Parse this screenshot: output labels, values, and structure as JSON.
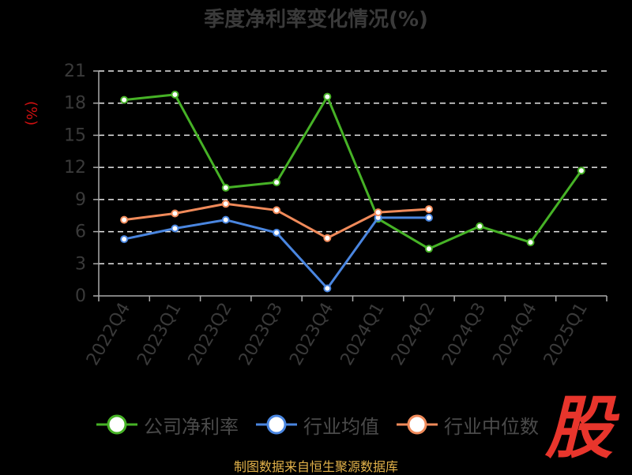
{
  "title": "季度净利率变化情况(%)",
  "unit_label": "(%)",
  "source": "制图数据来自恒生聚源数据库",
  "logo_text": "股",
  "colors": {
    "background": "#000000",
    "grid": "#e8e8e8",
    "axis": "#aaaaaa",
    "tick_text": "#3a3a3a",
    "company": "#46b226",
    "industry_avg": "#4a86e0",
    "industry_median": "#f08a5a"
  },
  "chart_data": {
    "type": "line",
    "title": "季度净利率变化情况(%)",
    "ylabel": "(%)",
    "categories": [
      "2022Q4",
      "2023Q1",
      "2023Q2",
      "2023Q3",
      "2023Q4",
      "2024Q1",
      "2024Q2",
      "2024Q3",
      "2024Q4",
      "2025Q1"
    ],
    "ylim": [
      0,
      21
    ],
    "yticks": [
      0,
      3,
      6,
      9,
      12,
      15,
      18,
      21
    ],
    "grid": true,
    "legend": "bottom",
    "series": [
      {
        "name": "公司净利率",
        "color_key": "company",
        "values": [
          18.3,
          18.8,
          10.1,
          10.6,
          18.6,
          7.2,
          4.4,
          6.5,
          5.0,
          11.7
        ]
      },
      {
        "name": "行业均值",
        "color_key": "industry_avg",
        "values": [
          5.3,
          6.3,
          7.1,
          5.9,
          0.7,
          7.3,
          7.3,
          null,
          null,
          null
        ]
      },
      {
        "name": "行业中位数",
        "color_key": "industry_median",
        "values": [
          7.1,
          7.7,
          8.6,
          8.0,
          5.4,
          7.8,
          8.1,
          null,
          null,
          null
        ]
      }
    ]
  }
}
